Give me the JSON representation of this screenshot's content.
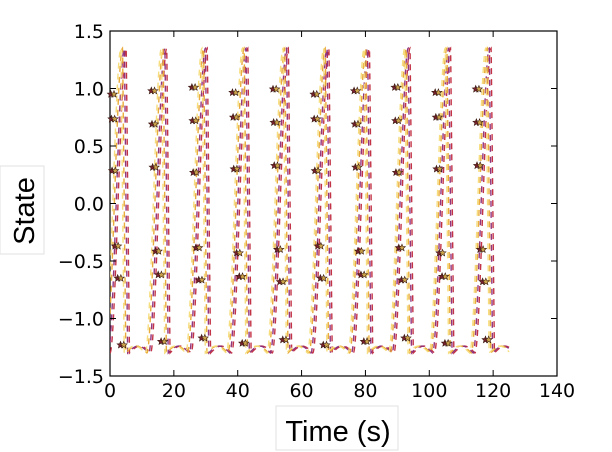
{
  "chart_data": {
    "type": "line",
    "title": "",
    "xlabel": "Time (s)",
    "ylabel": "State",
    "xlim": [
      0,
      140
    ],
    "ylim": [
      -1.5,
      1.5
    ],
    "xticks": [
      "0",
      "20",
      "40",
      "60",
      "80",
      "100",
      "120",
      "140"
    ],
    "yticks": [
      "1.5",
      "1.0",
      "0.5",
      "0.0",
      "−0.5",
      "−1.0",
      "−1.5"
    ],
    "grid": false,
    "legend": "none",
    "oscillation": {
      "period_s": 12.7,
      "t_end": 125,
      "amplitude_max": 1.35,
      "amplitude_min": -1.3
    },
    "series": [
      {
        "style": "dashed line",
        "color": "#c0283c",
        "phase": 0.0
      },
      {
        "style": "dashed line",
        "color": "#8a2a78",
        "phase": 0.045
      },
      {
        "style": "dashed line",
        "color": "#e8a630",
        "phase": 0.09
      },
      {
        "style": "dashed line",
        "color": "#f6dc78",
        "phase": 0.13
      }
    ],
    "marker_series": {
      "marker": "star",
      "fill_colors": [
        "#7a2030",
        "#c9a24a"
      ],
      "edge_color": "#3a1a10",
      "levels": [
        0.98,
        0.72,
        0.3,
        -0.4,
        -0.65,
        -1.2
      ]
    }
  }
}
